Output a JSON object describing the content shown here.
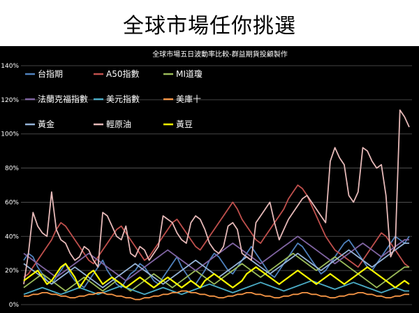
{
  "slide": {
    "title": "全球市場任你挑選"
  },
  "chart_data": {
    "type": "line",
    "title": "全球市場五日波動率比較-群益期貨投顧製作",
    "xlabel": "",
    "ylabel": "",
    "ylim": [
      0,
      140
    ],
    "y_ticks": [
      "0%",
      "20%",
      "40%",
      "60%",
      "80%",
      "100%",
      "120%",
      "140%"
    ],
    "grid": true,
    "legend_position": "top-left",
    "series": [
      {
        "name": "台指期",
        "color": "#4f81bd",
        "values": [
          26,
          30,
          28,
          22,
          18,
          14,
          12,
          16,
          20,
          24,
          18,
          14,
          12,
          10,
          14,
          18,
          22,
          26,
          20,
          16,
          12,
          10,
          14,
          18,
          20,
          24,
          22,
          18,
          14,
          12,
          16,
          20,
          24,
          28,
          22,
          18,
          14,
          12,
          16,
          20,
          26,
          30,
          28,
          24,
          20,
          18,
          22,
          26,
          30,
          34,
          30,
          26,
          22,
          18,
          16,
          20,
          24,
          28,
          32,
          36,
          34,
          30,
          26,
          22,
          18,
          20,
          24,
          28,
          32,
          36,
          38,
          34,
          30,
          26,
          22,
          20,
          24,
          28,
          32,
          36,
          40,
          38,
          36,
          40
        ]
      },
      {
        "name": "A50指數",
        "color": "#c0504d",
        "values": [
          16,
          18,
          22,
          26,
          30,
          34,
          38,
          44,
          48,
          46,
          42,
          38,
          34,
          30,
          26,
          24,
          28,
          32,
          36,
          40,
          44,
          46,
          42,
          38,
          34,
          30,
          26,
          28,
          32,
          36,
          40,
          44,
          48,
          50,
          46,
          42,
          38,
          34,
          32,
          36,
          40,
          44,
          48,
          52,
          56,
          60,
          56,
          50,
          46,
          42,
          38,
          36,
          40,
          44,
          48,
          52,
          56,
          62,
          66,
          70,
          68,
          64,
          58,
          52,
          46,
          40,
          36,
          32,
          30,
          28,
          26,
          24,
          22,
          26,
          30,
          34,
          38,
          42,
          40,
          36,
          32,
          28,
          24,
          22
        ]
      },
      {
        "name": "MI道瓊",
        "color": "#9bbb59",
        "values": [
          10,
          12,
          14,
          16,
          18,
          16,
          14,
          12,
          10,
          8,
          10,
          12,
          14,
          16,
          14,
          12,
          10,
          8,
          10,
          12,
          14,
          12,
          10,
          8,
          10,
          12,
          14,
          16,
          18,
          16,
          14,
          12,
          10,
          12,
          14,
          16,
          18,
          20,
          18,
          16,
          14,
          12,
          14,
          16,
          18,
          20,
          22,
          24,
          22,
          20,
          18,
          16,
          18,
          20,
          22,
          24,
          26,
          28,
          30,
          28,
          26,
          24,
          22,
          20,
          22,
          24,
          26,
          28,
          26,
          24,
          22,
          20,
          18,
          16,
          14,
          12,
          10,
          12,
          14,
          16,
          18,
          20,
          22,
          22
        ]
      },
      {
        "name": "法蘭克福指數",
        "color": "#8064a2",
        "values": [
          30,
          28,
          26,
          24,
          22,
          20,
          18,
          16,
          18,
          20,
          22,
          24,
          26,
          28,
          30,
          28,
          26,
          24,
          22,
          20,
          18,
          16,
          14,
          16,
          18,
          20,
          22,
          24,
          26,
          28,
          30,
          32,
          30,
          28,
          26,
          24,
          22,
          20,
          22,
          24,
          26,
          28,
          30,
          32,
          34,
          36,
          34,
          32,
          30,
          28,
          26,
          24,
          26,
          28,
          30,
          32,
          34,
          36,
          38,
          40,
          38,
          36,
          34,
          32,
          30,
          28,
          26,
          24,
          26,
          28,
          30,
          32,
          34,
          36,
          34,
          32,
          30,
          28,
          30,
          32,
          34,
          36,
          38,
          38
        ]
      },
      {
        "name": "美元指數",
        "color": "#4bacc6",
        "values": [
          6,
          7,
          8,
          9,
          10,
          9,
          8,
          7,
          6,
          7,
          8,
          9,
          10,
          9,
          8,
          7,
          6,
          7,
          8,
          9,
          10,
          11,
          10,
          9,
          8,
          7,
          6,
          7,
          8,
          9,
          10,
          9,
          8,
          7,
          6,
          7,
          8,
          9,
          10,
          11,
          12,
          11,
          10,
          9,
          8,
          7,
          8,
          9,
          10,
          11,
          12,
          13,
          12,
          11,
          10,
          9,
          8,
          9,
          10,
          11,
          12,
          13,
          14,
          13,
          12,
          11,
          10,
          9,
          10,
          11,
          12,
          13,
          12,
          11,
          10,
          9,
          8,
          7,
          8,
          9,
          10,
          9,
          8,
          8
        ]
      },
      {
        "name": "美庫十",
        "color": "#f79646",
        "values": [
          5,
          5,
          6,
          6,
          7,
          7,
          6,
          6,
          5,
          5,
          4,
          4,
          5,
          5,
          6,
          6,
          7,
          7,
          6,
          6,
          5,
          5,
          4,
          4,
          3,
          3,
          4,
          4,
          5,
          5,
          6,
          6,
          7,
          7,
          8,
          8,
          7,
          7,
          6,
          6,
          5,
          5,
          4,
          4,
          5,
          5,
          6,
          6,
          7,
          7,
          6,
          6,
          5,
          5,
          4,
          4,
          5,
          5,
          6,
          6,
          7,
          7,
          6,
          6,
          5,
          5,
          4,
          4,
          5,
          5,
          6,
          6,
          7,
          7,
          6,
          6,
          5,
          5,
          4,
          4,
          5,
          5,
          6,
          6
        ]
      },
      {
        "name": "黃金",
        "color": "#95b3d7",
        "values": [
          24,
          22,
          20,
          18,
          16,
          14,
          12,
          14,
          16,
          18,
          20,
          22,
          20,
          18,
          16,
          14,
          12,
          10,
          12,
          14,
          16,
          18,
          20,
          22,
          24,
          22,
          20,
          18,
          16,
          14,
          12,
          14,
          16,
          18,
          20,
          22,
          24,
          26,
          24,
          22,
          20,
          18,
          16,
          18,
          20,
          22,
          24,
          26,
          28,
          26,
          24,
          22,
          20,
          18,
          20,
          22,
          24,
          26,
          28,
          30,
          28,
          26,
          24,
          22,
          20,
          22,
          24,
          26,
          28,
          30,
          32,
          30,
          28,
          26,
          24,
          22,
          24,
          26,
          28,
          30,
          32,
          34,
          36,
          36
        ]
      },
      {
        "name": "輕原油",
        "color": "#e6b9b8",
        "values": [
          12,
          30,
          54,
          46,
          42,
          40,
          66,
          44,
          38,
          36,
          30,
          26,
          28,
          34,
          32,
          26,
          22,
          54,
          52,
          46,
          40,
          38,
          46,
          30,
          28,
          34,
          32,
          26,
          30,
          34,
          52,
          50,
          48,
          42,
          38,
          36,
          48,
          52,
          50,
          44,
          36,
          32,
          30,
          34,
          46,
          48,
          44,
          30,
          28,
          26,
          48,
          52,
          56,
          60,
          48,
          38,
          44,
          50,
          54,
          58,
          62,
          64,
          60,
          56,
          52,
          48,
          84,
          92,
          86,
          82,
          64,
          60,
          66,
          92,
          90,
          84,
          80,
          82,
          64,
          28,
          34,
          114,
          110,
          104
        ]
      },
      {
        "name": "黃豆",
        "color": "#ffff00",
        "values": [
          14,
          16,
          18,
          20,
          16,
          12,
          14,
          18,
          22,
          24,
          20,
          16,
          10,
          14,
          18,
          20,
          16,
          12,
          14,
          16,
          14,
          12,
          10,
          12,
          14,
          16,
          14,
          12,
          10,
          12,
          14,
          16,
          14,
          12,
          10,
          12,
          14,
          12,
          10,
          14,
          16,
          18,
          16,
          14,
          12,
          10,
          12,
          14,
          18,
          20,
          22,
          20,
          18,
          16,
          14,
          12,
          14,
          16,
          18,
          20,
          18,
          16,
          14,
          12,
          14,
          16,
          18,
          16,
          14,
          12,
          14,
          16,
          18,
          20,
          22,
          20,
          18,
          16,
          14,
          12,
          10,
          12,
          14,
          12
        ]
      }
    ]
  }
}
